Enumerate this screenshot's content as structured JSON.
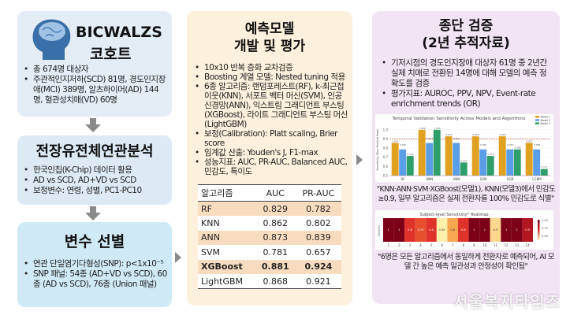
{
  "cohort": {
    "title": "BICWALZS",
    "subtitle": "코호트",
    "bullets": [
      "총 674명 대상자",
      "주관적인지저하(SCD) 81명, 경도인지장애(MCI) 389명, 알츠하이머(AD) 144명, 혈관성치매(VD) 60명"
    ]
  },
  "gwas": {
    "title": "전장유전체연관분석",
    "bullets": [
      "한국인칩(K-Chip) 데이터 활용",
      "AD vs SCD, AD+VD vs SCD",
      "보정변수: 연령, 성별, PC1-PC10"
    ]
  },
  "selection": {
    "title": "변수 선별",
    "bullets": [
      "연관 단일염기다형성(SNP): p<1x10⁻⁵",
      "SNP 패널: 54종 (AD+VD vs SCD), 60종 (AD vs SCD), 76종 (Union 패널)"
    ]
  },
  "model": {
    "title1": "예측모델",
    "title2": "개발 및 평가",
    "bullets": [
      "10x10 반복 층화 교차검증",
      "Boosting 계열 모델: Nested tuning 적용",
      "6종 알고리즘: 랜덤포레스트(RF), k-최근접 이웃(KNN), 서포트 벡터 머신(SVM), 인공 신경망(ANN), 익스트림 그래디언트 부스팅(XGBoost), 라이트 그래디언트 부스팅 머신(LightGBM)",
      "보정(Calibration): Platt scaling, Brier score",
      "임계값 산출: Youden's J, F1-max",
      "성능지표: AUC, PR-AUC, Balanced AUC, 민감도, 특이도"
    ],
    "table": {
      "headers": [
        "알고리즘",
        "AUC",
        "PR-AUC"
      ],
      "rows": [
        [
          "RF",
          "0.829",
          "0.782"
        ],
        [
          "KNN",
          "0.862",
          "0.802"
        ],
        [
          "ANN",
          "0.873",
          "0.839"
        ],
        [
          "SVM",
          "0.781",
          "0.657"
        ],
        [
          "XGBoost",
          "0.881",
          "0.924"
        ],
        [
          "LightGBM",
          "0.868",
          "0.921"
        ]
      ]
    }
  },
  "validation": {
    "title1": "종단 검증",
    "title2": "(2년 추적자료)",
    "bullets": [
      "기저시점의 경도인지장애 대상자 61명 중 2년간 실제 치매로 전환된 14명에 대해 모델의 예측 정확도를 검증",
      "평가지표: AUROC, PPV, NPV, Event-rate enrichment trends (OR)"
    ],
    "quote1": "\"KNN·ANN·SVM·XGBoost(모델1), KNN(모델3)에서 민감도 ≥0.9, 일부 알고리즘은 실제 전환자를 100% 민감도로 식별\"",
    "quote2": "\"6명은 모든 알고리즘에서 동일하게 전환자로 예측되어, AI 모델 간 높은 예측 일관성과 안정성이 확인됨\""
  },
  "watermark": "서울복지타임즈",
  "chart_data": [
    {
      "type": "bar",
      "title": "Temporal Validation Sensitivity Across Models and Algorithms",
      "ylabel": "Sensitivity (True Positive Rate)",
      "categories": [
        "RF",
        "KNN",
        "ANN",
        "SVM",
        "XGB",
        "LGBM"
      ],
      "ylim": [
        0.5,
        1.05
      ],
      "yticks": [
        "0.5",
        "0.6",
        "0.7",
        "0.8",
        "0.9",
        "1.0"
      ],
      "reference_line": 0.9,
      "legend": "top-right",
      "series": [
        {
          "name": "Model 1",
          "color": "#e0a020",
          "values": [
            0.857,
            1.0,
            0.929,
            0.929,
            0.929,
            0.857
          ]
        },
        {
          "name": "Model 2",
          "color": "#5b9ee8",
          "values": [
            0.786,
            0.857,
            0.857,
            0.786,
            0.786,
            0.786
          ]
        },
        {
          "name": "Model 3",
          "color": "#2e9e6a",
          "values": [
            0.714,
            1.0,
            0.643,
            0.714,
            0.786,
            0.571
          ]
        }
      ]
    },
    {
      "type": "heatmap",
      "title": "Subject-level Sensitivity* Heatmap",
      "ylabel": "Sensitiv",
      "x": [
        "1",
        "2",
        "3",
        "4",
        "5",
        "6",
        "7",
        "8",
        "9",
        "10",
        "11",
        "12",
        "13",
        "14"
      ],
      "values": [
        1,
        1,
        0.8,
        0.75,
        0.8,
        0.45,
        0.6,
        0.8,
        1,
        1,
        0.5,
        1,
        1,
        0.9
      ],
      "colorbar_ticks": [
        "1.00",
        "0.75",
        "0.50"
      ]
    }
  ]
}
